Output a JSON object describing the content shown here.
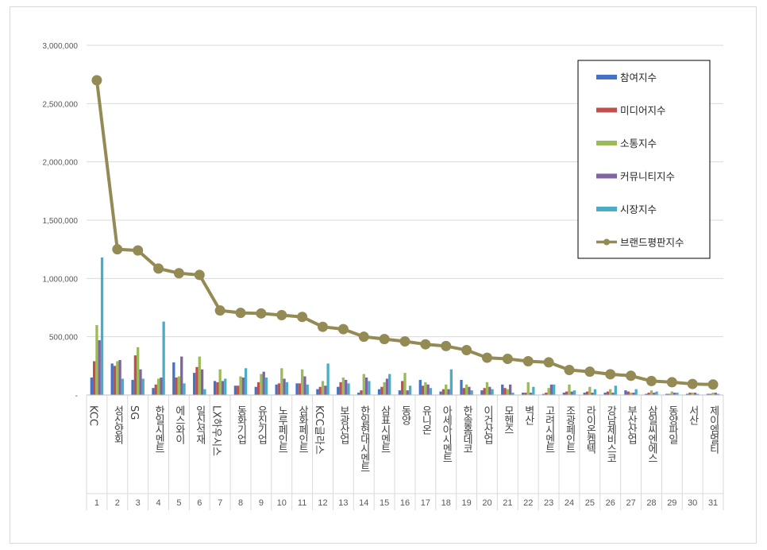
{
  "chart_data": {
    "type": "bar",
    "title": "",
    "xlabel": "",
    "ylabel": "",
    "ylim": [
      0,
      3000000
    ],
    "yticks": [
      0,
      500000,
      1000000,
      1500000,
      2000000,
      2500000,
      3000000
    ],
    "ytick_labels": [
      "-",
      "500,000",
      "1,000,000",
      "1,500,000",
      "2,000,000",
      "2,500,000",
      "3,000,000"
    ],
    "grid": true,
    "legend_position": "top-right",
    "categories": [
      "KCC",
      "성신양회",
      "SG",
      "한일시멘트",
      "에스와이",
      "일신석재",
      "LX하우시스",
      "동화기업",
      "유진기업",
      "노루페인트",
      "삼화페인트",
      "KCC글라스",
      "보광산업",
      "한일현대시멘트",
      "삼표시멘트",
      "동양",
      "유니온",
      "아세아시멘트",
      "한솔홈데코",
      "이건산업",
      "모헨즈",
      "벽산",
      "고려시멘트",
      "조광페인트",
      "라이온켐텍",
      "강남제비스코",
      "부산산업",
      "삼일씨엔에스",
      "동양파일",
      "서산",
      "제이엠멀티"
    ],
    "ranks": [
      "1",
      "2",
      "3",
      "4",
      "5",
      "6",
      "7",
      "8",
      "9",
      "10",
      "11",
      "12",
      "13",
      "14",
      "15",
      "16",
      "17",
      "18",
      "19",
      "20",
      "21",
      "22",
      "23",
      "24",
      "25",
      "26",
      "27",
      "28",
      "29",
      "30",
      "31"
    ],
    "series": [
      {
        "name": "참여지수",
        "color": "#4472c4",
        "values": [
          150000,
          270000,
          130000,
          60000,
          280000,
          190000,
          120000,
          80000,
          70000,
          90000,
          100000,
          50000,
          70000,
          20000,
          50000,
          40000,
          130000,
          30000,
          130000,
          40000,
          90000,
          20000,
          10000,
          20000,
          20000,
          20000,
          40000,
          10000,
          10000,
          10000,
          10000
        ]
      },
      {
        "name": "미디어지수",
        "color": "#c0504d",
        "values": [
          290000,
          250000,
          340000,
          90000,
          150000,
          240000,
          110000,
          80000,
          110000,
          100000,
          100000,
          70000,
          110000,
          40000,
          70000,
          120000,
          80000,
          50000,
          60000,
          60000,
          60000,
          20000,
          20000,
          30000,
          30000,
          30000,
          30000,
          20000,
          10000,
          20000,
          10000
        ]
      },
      {
        "name": "소통지수",
        "color": "#9bbb59",
        "values": [
          600000,
          290000,
          410000,
          140000,
          160000,
          330000,
          220000,
          160000,
          180000,
          230000,
          220000,
          120000,
          150000,
          180000,
          110000,
          190000,
          110000,
          90000,
          90000,
          110000,
          50000,
          110000,
          60000,
          90000,
          70000,
          50000,
          20000,
          40000,
          30000,
          20000,
          20000
        ]
      },
      {
        "name": "커뮤니티지수",
        "color": "#8064a2",
        "values": [
          470000,
          300000,
          220000,
          150000,
          330000,
          220000,
          120000,
          150000,
          200000,
          140000,
          160000,
          80000,
          130000,
          150000,
          140000,
          40000,
          90000,
          50000,
          70000,
          70000,
          90000,
          20000,
          90000,
          30000,
          20000,
          20000,
          20000,
          20000,
          20000,
          20000,
          20000
        ]
      },
      {
        "name": "시장지수",
        "color": "#4bacc6",
        "values": [
          1180000,
          140000,
          140000,
          630000,
          100000,
          50000,
          140000,
          230000,
          150000,
          110000,
          90000,
          270000,
          100000,
          120000,
          180000,
          80000,
          60000,
          220000,
          40000,
          50000,
          20000,
          70000,
          90000,
          40000,
          50000,
          80000,
          50000,
          30000,
          20000,
          10000,
          10000
        ]
      },
      {
        "name": "브랜드평판지수",
        "color": "#948a54",
        "type": "line",
        "values": [
          2700000,
          1250000,
          1240000,
          1085000,
          1045000,
          1030000,
          725000,
          705000,
          700000,
          685000,
          670000,
          585000,
          565000,
          500000,
          480000,
          460000,
          435000,
          420000,
          385000,
          320000,
          310000,
          290000,
          280000,
          215000,
          200000,
          178000,
          165000,
          120000,
          110000,
          95000,
          90000
        ]
      }
    ]
  }
}
